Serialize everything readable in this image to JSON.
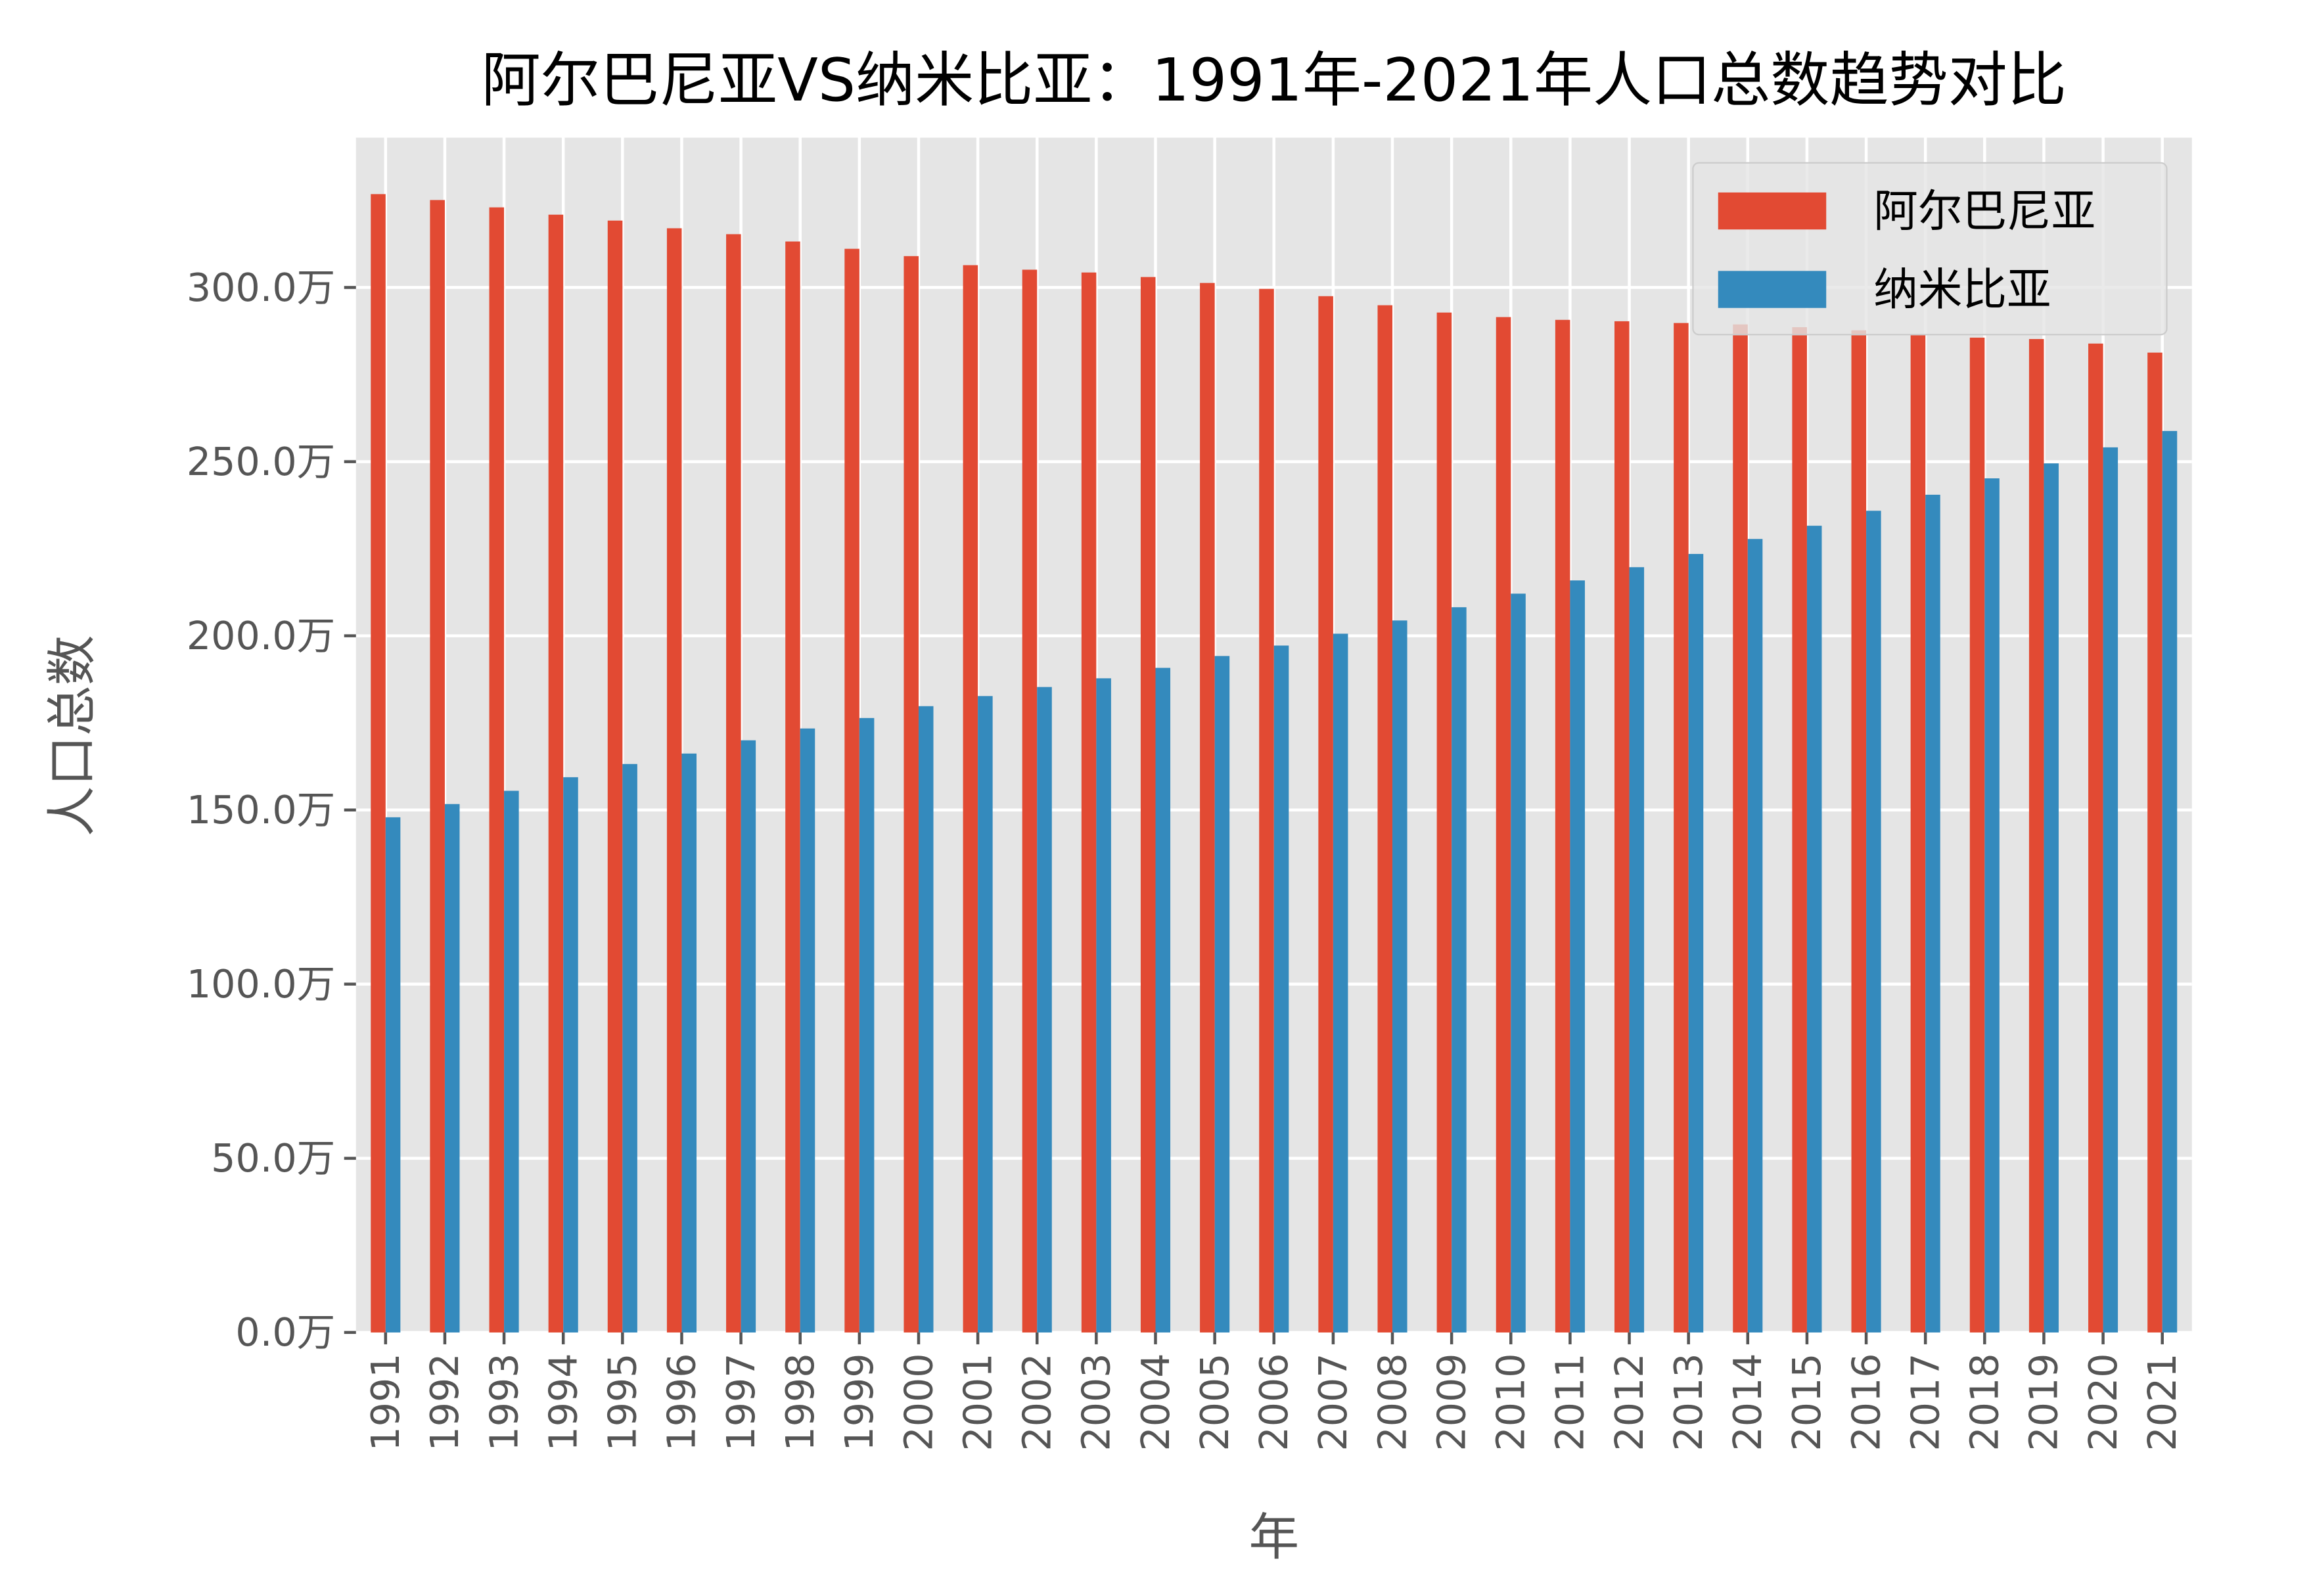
{
  "chart_data": {
    "type": "bar",
    "title": "阿尔巴尼亚VS纳米比亚：1991年-2021年人口总数趋势对比",
    "xlabel": "年",
    "ylabel": "人口总数",
    "ylim": [
      0,
      343
    ],
    "y_unit_suffix": "万",
    "yticks": [
      0,
      50,
      100,
      150,
      200,
      250,
      300
    ],
    "ytick_labels": [
      "0.0万",
      "50.0万",
      "100.0万",
      "150.0万",
      "200.0万",
      "250.0万",
      "300.0万"
    ],
    "grid": true,
    "legend_position": "top-right",
    "style": "ggplot",
    "categories": [
      "1991",
      "1992",
      "1993",
      "1994",
      "1995",
      "1996",
      "1997",
      "1998",
      "1999",
      "2000",
      "2001",
      "2002",
      "2003",
      "2004",
      "2005",
      "2006",
      "2007",
      "2008",
      "2009",
      "2010",
      "2011",
      "2012",
      "2013",
      "2014",
      "2015",
      "2016",
      "2017",
      "2018",
      "2019",
      "2020",
      "2021"
    ],
    "series": [
      {
        "name": "阿尔巴尼亚",
        "color": "#E24A33",
        "values": [
          326.8,
          325.1,
          323.0,
          320.9,
          319.2,
          317.0,
          315.3,
          313.2,
          311.1,
          309.0,
          306.4,
          305.1,
          304.3,
          303.0,
          301.3,
          299.6,
          297.5,
          294.9,
          292.8,
          291.5,
          290.7,
          290.3,
          289.8,
          289.4,
          288.6,
          287.7,
          286.4,
          285.6,
          285.2,
          283.9,
          281.3
        ]
      },
      {
        "name": "纳米比亚",
        "color": "#348ABD",
        "values": [
          147.9,
          151.7,
          155.5,
          159.4,
          163.2,
          166.2,
          170.0,
          173.4,
          176.4,
          179.8,
          182.7,
          185.3,
          187.8,
          190.8,
          194.2,
          197.2,
          200.6,
          204.4,
          208.2,
          212.1,
          215.9,
          219.7,
          223.5,
          227.8,
          231.6,
          235.9,
          240.5,
          245.2,
          249.5,
          254.1,
          258.8
        ]
      }
    ]
  }
}
